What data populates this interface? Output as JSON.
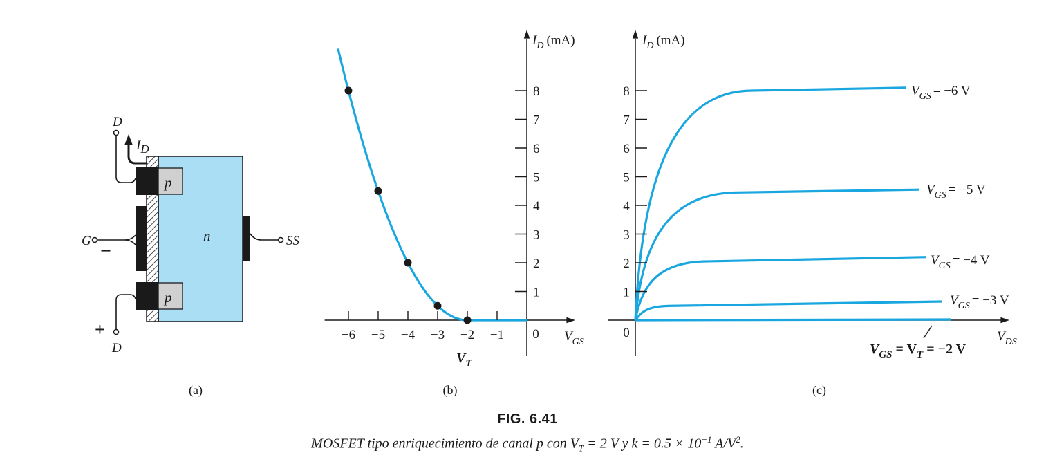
{
  "figure": {
    "number": "FIG. 6.41",
    "caption_parts": [
      "MOSFET tipo enriquecimiento de canal p con V",
      "T",
      " = 2 V y k = 0.5 × 10",
      "−1",
      " A/V",
      "2",
      "."
    ],
    "panel_labels": [
      "(a)",
      "(b)",
      "(c)"
    ]
  },
  "device": {
    "drain_top": "D",
    "drain_bottom": "D",
    "gate": "G",
    "substrate": "SS",
    "current": "I",
    "current_sub": "D",
    "p_region": "p",
    "n_region": "n",
    "minus": "−",
    "plus": "+",
    "colors": {
      "substrate": "#aadef5",
      "p_region": "#d0d0d0",
      "metal": "#1a1a1a"
    }
  },
  "chart_data": [
    {
      "type": "line",
      "title": "",
      "xlabel": "V",
      "xlabel_sub": "GS",
      "ylabel": "I",
      "ylabel_sub": "D",
      "ylabel_unit": "(mA)",
      "xlim": [
        -6.8,
        1.5
      ],
      "ylim": [
        -1.3,
        10
      ],
      "x_ticks": [
        -6,
        -5,
        -4,
        -3,
        -2,
        -1
      ],
      "x_tick_labels": [
        "−6",
        "−5",
        "−4",
        "−3",
        "−2",
        "−1"
      ],
      "origin_label": "0",
      "y_ticks": [
        1,
        2,
        3,
        4,
        5,
        6,
        7,
        8
      ],
      "y_tick_labels": [
        "1",
        "2",
        "3",
        "4",
        "5",
        "6",
        "7",
        "8"
      ],
      "annotation": "V",
      "annotation_sub": "T",
      "series": [
        {
          "x": [
            -6,
            -5,
            -4,
            -3,
            -2
          ],
          "y": [
            8,
            4.5,
            2,
            0.5,
            0
          ]
        }
      ],
      "color": "#1aa7e0"
    },
    {
      "type": "line",
      "title": "",
      "xlabel": "V",
      "xlabel_sub": "DS",
      "ylabel": "I",
      "ylabel_sub": "D",
      "ylabel_unit": "(mA)",
      "xlim": [
        0,
        10
      ],
      "ylim": [
        -1.3,
        10
      ],
      "origin_label": "0",
      "y_ticks": [
        1,
        2,
        3,
        4,
        5,
        6,
        7,
        8
      ],
      "y_tick_labels": [
        "1",
        "2",
        "3",
        "4",
        "5",
        "6",
        "7",
        "8"
      ],
      "color": "#1aa7e0",
      "series": [
        {
          "name": "V",
          "name_sub": "GS",
          "value": "= −6 V",
          "sat": 8.0,
          "end": 8.1
        },
        {
          "name": "V",
          "name_sub": "GS",
          "value": "= −5 V",
          "sat": 4.45,
          "end": 4.55
        },
        {
          "name": "V",
          "name_sub": "GS",
          "value": "= −4 V",
          "sat": 2.05,
          "end": 2.2
        },
        {
          "name": "V",
          "name_sub": "GS",
          "value": "= −3 V",
          "sat": 0.5,
          "end": 0.65
        },
        {
          "name": "V",
          "name_sub": "GS",
          "value": " = V",
          "value_sub": "T",
          "value_end": " = −2 V",
          "sat": 0,
          "end": 0
        }
      ]
    }
  ]
}
